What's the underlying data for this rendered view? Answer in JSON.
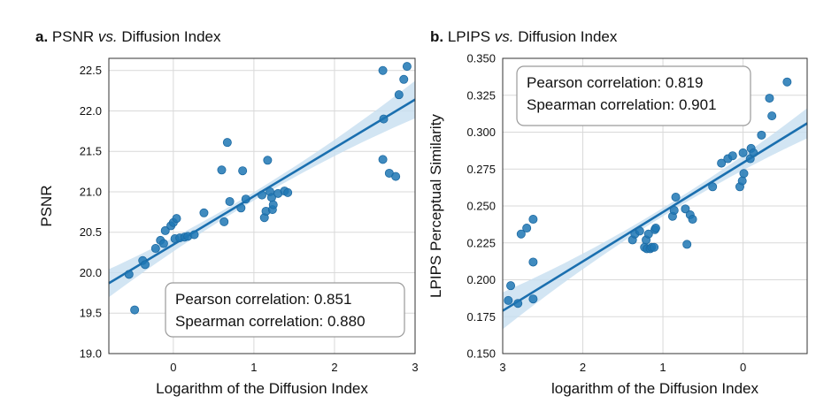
{
  "chart_data": [
    {
      "type": "scatter",
      "panel_letter": "a.",
      "title_pre": "PSNR ",
      "title_vs": "vs.",
      "title_post": " Diffusion Index",
      "xlabel": "Logarithm of the Diffusion Index",
      "ylabel": "PSNR",
      "xlim": [
        -0.8,
        3.0
      ],
      "ylim": [
        19.0,
        22.65
      ],
      "x_reversed": false,
      "xticks": [
        0,
        1,
        2,
        3
      ],
      "xtick_labels": [
        "0",
        "1",
        "2",
        "3"
      ],
      "yticks": [
        19.0,
        19.5,
        20.0,
        20.5,
        21.0,
        21.5,
        22.0,
        22.5
      ],
      "ytick_labels": [
        "19.0",
        "19.5",
        "20.0",
        "20.5",
        "21.0",
        "21.5",
        "22.0",
        "22.5"
      ],
      "grid": true,
      "annotation": {
        "lines": [
          "Pearson correlation: 0.851",
          "Spearman correlation: 0.880"
        ],
        "placement": "bottom-right"
      },
      "regression": {
        "x": [
          -0.8,
          3.0
        ],
        "y": [
          19.87,
          22.14
        ]
      },
      "points": [
        {
          "x": -0.55,
          "y": 19.98
        },
        {
          "x": -0.48,
          "y": 19.54
        },
        {
          "x": -0.38,
          "y": 20.15
        },
        {
          "x": -0.35,
          "y": 20.1
        },
        {
          "x": -0.22,
          "y": 20.3
        },
        {
          "x": -0.16,
          "y": 20.4
        },
        {
          "x": -0.12,
          "y": 20.36
        },
        {
          "x": -0.1,
          "y": 20.52
        },
        {
          "x": -0.03,
          "y": 20.58
        },
        {
          "x": 0.0,
          "y": 20.62
        },
        {
          "x": 0.02,
          "y": 20.42
        },
        {
          "x": 0.04,
          "y": 20.67
        },
        {
          "x": 0.08,
          "y": 20.43
        },
        {
          "x": 0.14,
          "y": 20.44
        },
        {
          "x": 0.18,
          "y": 20.45
        },
        {
          "x": 0.26,
          "y": 20.47
        },
        {
          "x": 0.38,
          "y": 20.74
        },
        {
          "x": 0.6,
          "y": 21.27
        },
        {
          "x": 0.63,
          "y": 20.63
        },
        {
          "x": 0.67,
          "y": 21.61
        },
        {
          "x": 0.7,
          "y": 20.88
        },
        {
          "x": 0.84,
          "y": 20.8
        },
        {
          "x": 0.86,
          "y": 21.26
        },
        {
          "x": 0.9,
          "y": 20.91
        },
        {
          "x": 1.1,
          "y": 20.96
        },
        {
          "x": 1.13,
          "y": 20.68
        },
        {
          "x": 1.15,
          "y": 20.76
        },
        {
          "x": 1.17,
          "y": 21.39
        },
        {
          "x": 1.2,
          "y": 21.0
        },
        {
          "x": 1.22,
          "y": 20.93
        },
        {
          "x": 1.23,
          "y": 20.78
        },
        {
          "x": 1.24,
          "y": 20.84
        },
        {
          "x": 1.3,
          "y": 20.98
        },
        {
          "x": 1.38,
          "y": 21.01
        },
        {
          "x": 1.42,
          "y": 20.99
        },
        {
          "x": 2.6,
          "y": 22.5
        },
        {
          "x": 2.6,
          "y": 21.4
        },
        {
          "x": 2.61,
          "y": 21.9
        },
        {
          "x": 2.68,
          "y": 21.23
        },
        {
          "x": 2.76,
          "y": 21.19
        },
        {
          "x": 2.8,
          "y": 22.2
        },
        {
          "x": 2.86,
          "y": 22.39
        },
        {
          "x": 2.9,
          "y": 22.55
        }
      ]
    },
    {
      "type": "scatter",
      "panel_letter": "b.",
      "title_pre": "LPIPS ",
      "title_vs": "vs.",
      "title_post": " Diffusion Index",
      "xlabel": "logarithm of the Diffusion Index",
      "ylabel": "LPIPS Perceptual Similarity",
      "xlim": [
        3.0,
        -0.8
      ],
      "ylim": [
        0.15,
        0.35
      ],
      "x_reversed": true,
      "xticks": [
        3,
        2,
        1,
        0
      ],
      "xtick_labels": [
        "3",
        "2",
        "1",
        "0"
      ],
      "yticks": [
        0.15,
        0.175,
        0.2,
        0.225,
        0.25,
        0.275,
        0.3,
        0.325,
        0.35
      ],
      "ytick_labels": [
        "0.150",
        "0.175",
        "0.200",
        "0.225",
        "0.250",
        "0.275",
        "0.300",
        "0.325",
        "0.350"
      ],
      "grid": true,
      "annotation": {
        "lines": [
          "Pearson correlation: 0.819",
          "Spearman correlation: 0.901"
        ],
        "placement": "top-left"
      },
      "regression": {
        "x": [
          3.0,
          -0.8
        ],
        "y": [
          0.179,
          0.306
        ]
      },
      "points": [
        {
          "x": 2.93,
          "y": 0.186
        },
        {
          "x": 2.9,
          "y": 0.196
        },
        {
          "x": 2.81,
          "y": 0.184
        },
        {
          "x": 2.77,
          "y": 0.231
        },
        {
          "x": 2.7,
          "y": 0.235
        },
        {
          "x": 2.62,
          "y": 0.241
        },
        {
          "x": 2.62,
          "y": 0.212
        },
        {
          "x": 2.62,
          "y": 0.187
        },
        {
          "x": 1.38,
          "y": 0.227
        },
        {
          "x": 1.35,
          "y": 0.231
        },
        {
          "x": 1.29,
          "y": 0.233
        },
        {
          "x": 1.23,
          "y": 0.222
        },
        {
          "x": 1.21,
          "y": 0.227
        },
        {
          "x": 1.2,
          "y": 0.221
        },
        {
          "x": 1.18,
          "y": 0.231
        },
        {
          "x": 1.16,
          "y": 0.221
        },
        {
          "x": 1.14,
          "y": 0.222
        },
        {
          "x": 1.11,
          "y": 0.222
        },
        {
          "x": 1.1,
          "y": 0.234
        },
        {
          "x": 1.09,
          "y": 0.235
        },
        {
          "x": 0.88,
          "y": 0.243
        },
        {
          "x": 0.86,
          "y": 0.247
        },
        {
          "x": 0.84,
          "y": 0.256
        },
        {
          "x": 0.72,
          "y": 0.248
        },
        {
          "x": 0.7,
          "y": 0.224
        },
        {
          "x": 0.66,
          "y": 0.244
        },
        {
          "x": 0.63,
          "y": 0.241
        },
        {
          "x": 0.38,
          "y": 0.263
        },
        {
          "x": 0.27,
          "y": 0.279
        },
        {
          "x": 0.19,
          "y": 0.282
        },
        {
          "x": 0.13,
          "y": 0.284
        },
        {
          "x": 0.04,
          "y": 0.263
        },
        {
          "x": 0.01,
          "y": 0.267
        },
        {
          "x": 0.0,
          "y": 0.286
        },
        {
          "x": -0.01,
          "y": 0.272
        },
        {
          "x": -0.09,
          "y": 0.282
        },
        {
          "x": -0.1,
          "y": 0.289
        },
        {
          "x": -0.13,
          "y": 0.286
        },
        {
          "x": -0.23,
          "y": 0.298
        },
        {
          "x": -0.33,
          "y": 0.323
        },
        {
          "x": -0.36,
          "y": 0.311
        },
        {
          "x": -0.55,
          "y": 0.334
        }
      ]
    }
  ],
  "colors": {
    "point": "#1f77b4",
    "point_edge": "#1c6aa3",
    "line": "#1a6faf",
    "band": "#c7dff0",
    "grid": "#d9d9d9",
    "frame": "#333333",
    "text": "#111111"
  }
}
